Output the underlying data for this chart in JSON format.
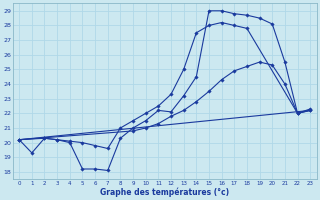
{
  "background_color": "#cce8f0",
  "line_color": "#1a3a9e",
  "grid_color": "#b0d8e8",
  "xlabel": "Graphe des températures (°c)",
  "ylim": [
    18,
    29
  ],
  "xlim": [
    0,
    23
  ],
  "yticks": [
    18,
    19,
    20,
    21,
    22,
    23,
    24,
    25,
    26,
    27,
    28,
    29
  ],
  "xticks": [
    0,
    1,
    2,
    3,
    4,
    5,
    6,
    7,
    8,
    9,
    10,
    11,
    12,
    13,
    14,
    15,
    16,
    17,
    18,
    19,
    20,
    21,
    22,
    23
  ],
  "series": [
    {
      "x": [
        0,
        1,
        2,
        3,
        4,
        5,
        6,
        7,
        8,
        9,
        10,
        11,
        12,
        13,
        14,
        15,
        16,
        17,
        18,
        19,
        20,
        21,
        22,
        23
      ],
      "y": [
        20.2,
        19.3,
        20.3,
        20.2,
        20.0,
        18.2,
        18.2,
        18.1,
        20.3,
        21.0,
        21.5,
        22.2,
        22.1,
        23.2,
        24.5,
        29.0,
        29.0,
        28.8,
        28.7,
        28.5,
        28.1,
        25.5,
        22.0,
        22.2
      ],
      "marker": true
    },
    {
      "x": [
        0,
        2,
        3,
        4,
        5,
        6,
        7,
        8,
        9,
        10,
        11,
        12,
        13,
        14,
        15,
        16,
        17,
        18,
        22,
        23
      ],
      "y": [
        20.2,
        20.3,
        20.2,
        20.1,
        20.0,
        19.8,
        19.6,
        21.0,
        21.5,
        22.0,
        22.5,
        23.3,
        25.0,
        27.5,
        28.0,
        28.2,
        28.0,
        27.8,
        22.0,
        22.3
      ],
      "marker": true
    },
    {
      "x": [
        0,
        9,
        10,
        11,
        12,
        13,
        14,
        15,
        16,
        17,
        18,
        19,
        20,
        21,
        22,
        23
      ],
      "y": [
        20.2,
        20.8,
        21.0,
        21.3,
        21.8,
        22.2,
        22.8,
        23.5,
        24.3,
        24.9,
        25.2,
        25.5,
        25.3,
        24.0,
        22.0,
        22.2
      ],
      "marker": true
    },
    {
      "x": [
        0,
        23
      ],
      "y": [
        20.2,
        22.2
      ],
      "marker": false
    }
  ]
}
